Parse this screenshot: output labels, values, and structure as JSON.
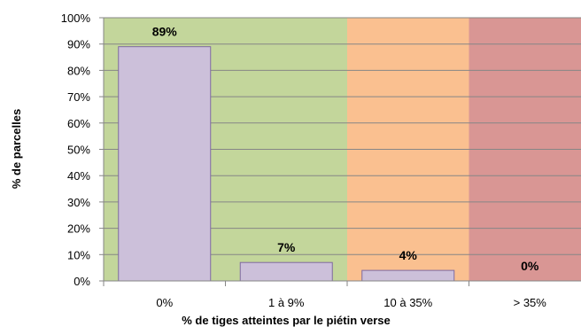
{
  "chart_data": {
    "type": "bar",
    "title": "",
    "xlabel": "% de tiges atteintes par le piétin verse",
    "ylabel": "% de parcelles",
    "categories": [
      "0%",
      "1 à 9%",
      "10 à 35%",
      "> 35%"
    ],
    "values": [
      89,
      7,
      4,
      0
    ],
    "value_labels": [
      "89%",
      "7%",
      "4%",
      "0%"
    ],
    "ylim": [
      0,
      100
    ],
    "ytick_values": [
      0,
      10,
      20,
      30,
      40,
      50,
      60,
      70,
      80,
      90,
      100
    ],
    "ytick_labels": [
      "0%",
      "10%",
      "20%",
      "30%",
      "40%",
      "50%",
      "60%",
      "70%",
      "80%",
      "90%",
      "100%"
    ],
    "grid": true,
    "legend": "none",
    "colors": {
      "bar_fill": "#ccc0da",
      "bar_stroke": "#7f6a9f",
      "gridline": "#868686",
      "band_green": "#c3d69b",
      "band_orange": "#fac090",
      "band_red": "#d99694"
    },
    "background_bands": [
      {
        "from_category": 0,
        "to_category": 1,
        "color": "#c3d69b"
      },
      {
        "from_category": 2,
        "to_category": 2,
        "color": "#fac090"
      },
      {
        "from_category": 3,
        "to_category": 3,
        "color": "#d99694"
      }
    ]
  }
}
